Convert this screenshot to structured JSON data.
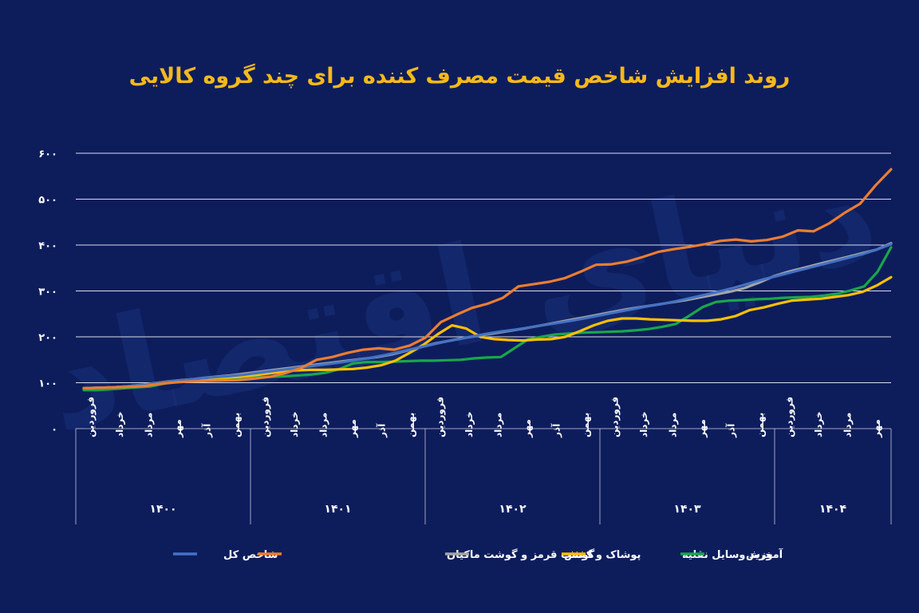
{
  "chart_data": {
    "type": "line",
    "title": "روند افزایش شاخص قیمت مصرف کننده برای چند گروه کالایی",
    "watermark": "دنیای اقتصاد",
    "ylim": [
      0,
      600
    ],
    "y_ticks": [
      "۰",
      "۱۰۰",
      "۲۰۰",
      "۳۰۰",
      "۴۰۰",
      "۵۰۰",
      "۶۰۰"
    ],
    "month_labels": [
      "فروردین",
      "خرداد",
      "مرداد",
      "مهر",
      "آذر",
      "بهمن"
    ],
    "years": [
      {
        "label": "۱۴۰۰",
        "months": [
          "فروردین",
          "خرداد",
          "مرداد",
          "مهر",
          "آذر",
          "بهمن"
        ]
      },
      {
        "label": "۱۴۰۱",
        "months": [
          "فروردین",
          "خرداد",
          "مرداد",
          "مهر",
          "آذر",
          "بهمن"
        ]
      },
      {
        "label": "۱۴۰۲",
        "months": [
          "فروردین",
          "خرداد",
          "مرداد",
          "مهر",
          "آذر",
          "بهمن"
        ]
      },
      {
        "label": "۱۴۰۳",
        "months": [
          "فروردین",
          "خرداد",
          "مرداد",
          "مهر",
          "آذر",
          "بهمن"
        ]
      },
      {
        "label": "۱۴۰۴",
        "months": [
          "فروردین",
          "خرداد",
          "مرداد",
          "مهر"
        ]
      }
    ],
    "series": [
      {
        "name": "شاخص کل",
        "color": "#4472c4",
        "values": [
          88,
          89,
          90,
          92,
          95,
          99,
          103,
          106,
          109,
          112,
          114,
          117,
          121,
          125,
          129,
          133,
          137,
          141,
          145,
          150,
          155,
          161,
          168,
          175,
          182,
          189,
          195,
          201,
          207,
          212,
          216,
          221,
          226,
          231,
          236,
          242,
          248,
          254,
          260,
          266,
          271,
          277,
          284,
          291,
          298,
          306,
          315,
          324,
          332,
          340,
          348,
          356,
          364,
          372,
          380,
          390,
          402
        ]
      },
      {
        "name": "گوشت قرمز و گوشت ماکیان",
        "color": "#ed7d31",
        "values": [
          88,
          89,
          90,
          91,
          93,
          98,
          101,
          103,
          104,
          105,
          106,
          109,
          113,
          121,
          132,
          150,
          156,
          165,
          172,
          175,
          172,
          181,
          198,
          232,
          248,
          263,
          272,
          285,
          310,
          315,
          320,
          328,
          342,
          357,
          358,
          364,
          374,
          385,
          391,
          396,
          402,
          409,
          412,
          408,
          411,
          418,
          432,
          430,
          447,
          470,
          490,
          530,
          565
        ]
      },
      {
        "name": "پوشاک و کفش",
        "color": "#a5a5a5",
        "values": [
          88,
          89,
          90,
          92,
          95,
          99,
          103,
          106,
          110,
          113,
          116,
          120,
          124,
          128,
          132,
          136,
          140,
          144,
          148,
          152,
          156,
          162,
          170,
          178,
          186,
          192,
          198,
          203,
          208,
          213,
          218,
          224,
          230,
          236,
          242,
          248,
          254,
          260,
          265,
          270,
          275,
          280,
          286,
          292,
          298,
          306,
          318,
          332,
          342,
          350,
          358,
          366,
          374,
          382,
          390,
          404
        ]
      },
      {
        "name": "خرید وسایل نقلیه",
        "color": "#ffc000",
        "values": [
          88,
          89,
          90,
          92,
          95,
          99,
          103,
          106,
          108,
          110,
          111,
          113,
          116,
          120,
          124,
          127,
          128,
          128,
          129,
          130,
          133,
          138,
          148,
          165,
          183,
          206,
          225,
          218,
          200,
          195,
          193,
          192,
          194,
          195,
          200,
          212,
          225,
          235,
          240,
          240,
          238,
          237,
          236,
          235,
          235,
          238,
          245,
          258,
          264,
          272,
          279,
          281,
          283,
          287,
          291,
          298,
          312,
          330
        ]
      },
      {
        "name": "آموزش",
        "color": "#1aa64a",
        "values": [
          84,
          84,
          86,
          88,
          90,
          92,
          98,
          104,
          106,
          107,
          108,
          108,
          110,
          112,
          113,
          114,
          116,
          118,
          122,
          130,
          142,
          145,
          145,
          146,
          147,
          148,
          148,
          149,
          150,
          153,
          155,
          156,
          175,
          194,
          200,
          205,
          207,
          209,
          210,
          211,
          212,
          214,
          217,
          222,
          228,
          246,
          265,
          276,
          279,
          280,
          282,
          283,
          285,
          286,
          287,
          290,
          294,
          301,
          310,
          342,
          395
        ]
      }
    ]
  }
}
